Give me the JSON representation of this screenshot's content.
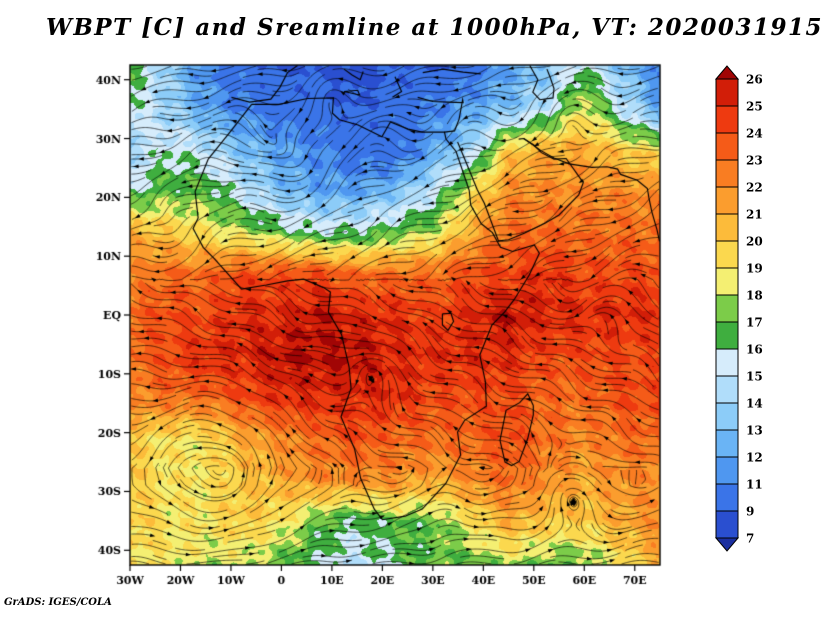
{
  "title": "WBPT [C] and Sreamline at 1000hPa, VT: 2020031915",
  "credit": "GrADS: IGES/COLA",
  "chart_data": {
    "type": "heatmap",
    "overlay": "streamlines",
    "variable": "WBPT [C]",
    "level": "1000hPa",
    "valid_time": "2020031915",
    "lon_range": [
      -30,
      75
    ],
    "lat_range": [
      -42.5,
      42.5
    ],
    "x_ticks": [
      "30W",
      "20W",
      "10W",
      "0",
      "10E",
      "20E",
      "30E",
      "40E",
      "50E",
      "60E",
      "70E"
    ],
    "x_tick_lons": [
      -30,
      -20,
      -10,
      0,
      10,
      20,
      30,
      40,
      50,
      60,
      70
    ],
    "y_ticks": [
      "40N",
      "30N",
      "20N",
      "10N",
      "EQ",
      "10S",
      "20S",
      "30S",
      "40S"
    ],
    "y_tick_lats": [
      40,
      30,
      20,
      10,
      0,
      -10,
      -20,
      -30,
      -40
    ],
    "levels": [
      7,
      9,
      11,
      12,
      13,
      14,
      15,
      16,
      17,
      18,
      19,
      20,
      21,
      22,
      23,
      24,
      25,
      26
    ],
    "colors": [
      "#1b2fa0",
      "#2a4fd0",
      "#3a74e8",
      "#4f97f0",
      "#6ab4f5",
      "#8cccf8",
      "#b0ddfa",
      "#d6ecfb",
      "#3fae3f",
      "#7ccc49",
      "#f4ef72",
      "#fbd84e",
      "#fcbb3a",
      "#fb9d2e",
      "#f97d22",
      "#f55b18",
      "#ee3a10",
      "#d21e08",
      "#a10505"
    ],
    "grid": {
      "lons": [
        -30,
        -22.5,
        -15,
        -7.5,
        0,
        7.5,
        15,
        22.5,
        30,
        37.5,
        45,
        52.5,
        60,
        67.5,
        75
      ],
      "lats": [
        42.5,
        35,
        28,
        21,
        14,
        7,
        0,
        -7,
        -14,
        -21,
        -28,
        -35,
        -42.5
      ],
      "values": [
        [
          17,
          14,
          11,
          10,
          9,
          9,
          8,
          9,
          9,
          10,
          12,
          13,
          16,
          13,
          11
        ],
        [
          16,
          14,
          12,
          11,
          10,
          10,
          9,
          10,
          11,
          12,
          13,
          15,
          19,
          15,
          12
        ],
        [
          14,
          16,
          15,
          13,
          12,
          11,
          10,
          10,
          12,
          14,
          20,
          21,
          21,
          20,
          19
        ],
        [
          16,
          17,
          17,
          15,
          13,
          12,
          12,
          13,
          15,
          19,
          22,
          22,
          22,
          22,
          22
        ],
        [
          21,
          20,
          19,
          18,
          17,
          16,
          16,
          17,
          18,
          21,
          23,
          23,
          23,
          23,
          23
        ],
        [
          22,
          23,
          23,
          24,
          24,
          24,
          23,
          23,
          23,
          24,
          24,
          25,
          24,
          24,
          24
        ],
        [
          23,
          24,
          24,
          25,
          25,
          26,
          25,
          25,
          24,
          25,
          26,
          25,
          25,
          25,
          25
        ],
        [
          23,
          24,
          25,
          25,
          26,
          26,
          26,
          25,
          25,
          25,
          25,
          24,
          24,
          24,
          24
        ],
        [
          22,
          23,
          23,
          24,
          25,
          25,
          25,
          25,
          24,
          24,
          24,
          23,
          23,
          24,
          24
        ],
        [
          20,
          19,
          19,
          21,
          22,
          23,
          24,
          23,
          23,
          23,
          24,
          23,
          22,
          23,
          23
        ],
        [
          20,
          19,
          19,
          20,
          21,
          22,
          22,
          22,
          21,
          22,
          23,
          22,
          21,
          22,
          22
        ],
        [
          20,
          19,
          19,
          20,
          19,
          17,
          16,
          17,
          17,
          19,
          21,
          20,
          20,
          21,
          22
        ],
        [
          19,
          19,
          18,
          18,
          17,
          16,
          15,
          16,
          17,
          17,
          18,
          17,
          17,
          19,
          21
        ]
      ]
    },
    "vortices": [
      [
        -13,
        -26,
        3.2,
        13
      ],
      [
        57,
        -30,
        -3.2,
        6
      ],
      [
        33,
        -34,
        -1.8,
        5
      ],
      [
        2,
        25,
        -1.8,
        9
      ],
      [
        27,
        30,
        -1.2,
        6
      ],
      [
        10,
        38,
        1.5,
        5
      ],
      [
        58,
        36,
        1.5,
        6
      ],
      [
        18,
        -8,
        1.5,
        7
      ],
      [
        68,
        3,
        1.3,
        7
      ],
      [
        -23,
        12,
        -1.0,
        6
      ],
      [
        45,
        33,
        -1.2,
        5
      ]
    ],
    "coastlines": [
      [
        [
          -5.9,
          35.8
        ],
        [
          -9.8,
          31.5
        ],
        [
          -14.5,
          26.5
        ],
        [
          -17.1,
          21
        ],
        [
          -16.5,
          16.5
        ],
        [
          -17.5,
          14.7
        ],
        [
          -15.5,
          11.5
        ],
        [
          -13.3,
          9.6
        ],
        [
          -7.9,
          4.4
        ],
        [
          -3,
          5.1
        ],
        [
          1.2,
          5.8
        ],
        [
          4.4,
          6.1
        ],
        [
          8.5,
          4.6
        ],
        [
          9.7,
          3.9
        ],
        [
          9.3,
          0.5
        ],
        [
          11.9,
          -3.3
        ],
        [
          13.4,
          -8.8
        ],
        [
          13.8,
          -12.5
        ],
        [
          11.8,
          -17.3
        ],
        [
          14.5,
          -22.8
        ],
        [
          15.7,
          -27.8
        ],
        [
          18.4,
          -33
        ],
        [
          20,
          -34.8
        ],
        [
          24.5,
          -34.2
        ],
        [
          27.9,
          -33
        ],
        [
          32.6,
          -28.6
        ],
        [
          35.5,
          -23.8
        ],
        [
          34.9,
          -19.9
        ],
        [
          36.3,
          -17.9
        ],
        [
          40.6,
          -15.5
        ],
        [
          40.4,
          -11.3
        ],
        [
          39.3,
          -6.8
        ],
        [
          41.7,
          -1.7
        ],
        [
          44.2,
          0.5
        ],
        [
          46.1,
          2.6
        ],
        [
          49.1,
          6.8
        ],
        [
          51.1,
          10.5
        ],
        [
          50.1,
          11.9
        ],
        [
          45.8,
          10.8
        ],
        [
          43.4,
          11.5
        ],
        [
          41.8,
          14
        ],
        [
          39.6,
          15.5
        ],
        [
          37.5,
          18.7
        ],
        [
          37.2,
          21.2
        ],
        [
          34.6,
          27.8
        ],
        [
          32.6,
          29.9
        ],
        [
          32.3,
          31.1
        ],
        [
          27.9,
          31.1
        ],
        [
          25.1,
          31.6
        ],
        [
          21.6,
          32.8
        ],
        [
          19.9,
          30.3
        ],
        [
          15.2,
          32.3
        ],
        [
          11.5,
          33.2
        ],
        [
          10.1,
          34.3
        ],
        [
          10.3,
          36.9
        ],
        [
          5.2,
          36.8
        ],
        [
          -0.5,
          35.8
        ],
        [
          -5.9,
          35.8
        ]
      ],
      [
        [
          34.9,
          29.4
        ],
        [
          36.8,
          25.5
        ],
        [
          38.8,
          21.3
        ],
        [
          40.2,
          19
        ],
        [
          43,
          12.6
        ],
        [
          45,
          12.8
        ],
        [
          48.1,
          13.9
        ],
        [
          52.2,
          15.6
        ],
        [
          55,
          17
        ],
        [
          58.9,
          20.4
        ],
        [
          59.8,
          22.5
        ],
        [
          56.4,
          26.6
        ],
        [
          54,
          26.5
        ],
        [
          51.5,
          27.6
        ],
        [
          50,
          28.9
        ],
        [
          48,
          30
        ],
        [
          47,
          29.9
        ]
      ],
      [
        [
          48,
          30
        ],
        [
          51.5,
          27.9
        ],
        [
          54,
          26.7
        ],
        [
          57,
          25.7
        ],
        [
          61.5,
          25.1
        ],
        [
          64.5,
          25.2
        ],
        [
          66.6,
          24.8
        ],
        [
          67.2,
          23.9
        ],
        [
          70.5,
          22.9
        ],
        [
          72.5,
          21.5
        ],
        [
          72.8,
          19.9
        ],
        [
          73.4,
          17.5
        ],
        [
          74.4,
          14.5
        ],
        [
          74.9,
          12.5
        ]
      ],
      [
        [
          -9.9,
          37
        ],
        [
          -6.3,
          36.2
        ],
        [
          -2.1,
          36.7
        ],
        [
          -0.3,
          38.7
        ],
        [
          1.2,
          41.2
        ],
        [
          3.2,
          42.4
        ]
      ],
      [
        [
          12.4,
          41.8
        ],
        [
          14,
          40.8
        ],
        [
          15.6,
          40
        ],
        [
          16.2,
          41.4
        ]
      ],
      [
        [
          12.4,
          38
        ],
        [
          15.1,
          38.2
        ],
        [
          15.5,
          37.4
        ],
        [
          12.4,
          38
        ]
      ],
      [
        [
          27,
          37
        ],
        [
          30,
          36.3
        ],
        [
          33,
          36.2
        ],
        [
          36,
          36.1
        ],
        [
          35.9,
          36.6
        ],
        [
          35.2,
          33.3
        ],
        [
          34.3,
          31.3
        ],
        [
          32.3,
          31.1
        ]
      ],
      [
        [
          28,
          41.2
        ],
        [
          32,
          41.8
        ],
        [
          36,
          41.3
        ],
        [
          39.5,
          41
        ]
      ],
      [
        [
          22.5,
          40.5
        ],
        [
          23.8,
          38
        ],
        [
          22,
          37
        ]
      ],
      [
        [
          49.2,
          42.4
        ],
        [
          50.8,
          40
        ],
        [
          49.8,
          37.9
        ],
        [
          51.2,
          36.6
        ],
        [
          53.8,
          36.9
        ],
        [
          54,
          38.5
        ],
        [
          53.2,
          40.5
        ],
        [
          52.6,
          41.8
        ]
      ],
      [
        [
          49.9,
          -15.4
        ],
        [
          48.8,
          -13.4
        ],
        [
          47.2,
          -14.9
        ],
        [
          44.5,
          -16.2
        ],
        [
          43.3,
          -21.3
        ],
        [
          44.3,
          -25
        ],
        [
          45.6,
          -25.6
        ],
        [
          47.1,
          -24.9
        ],
        [
          48.8,
          -21
        ],
        [
          49.9,
          -17
        ],
        [
          49.9,
          -15.4
        ]
      ],
      [
        [
          31.9,
          0.2
        ],
        [
          33.6,
          0.3
        ],
        [
          34.1,
          -1.1
        ],
        [
          33,
          -2.6
        ],
        [
          31.9,
          -1.7
        ],
        [
          31.9,
          0.2
        ]
      ]
    ]
  }
}
